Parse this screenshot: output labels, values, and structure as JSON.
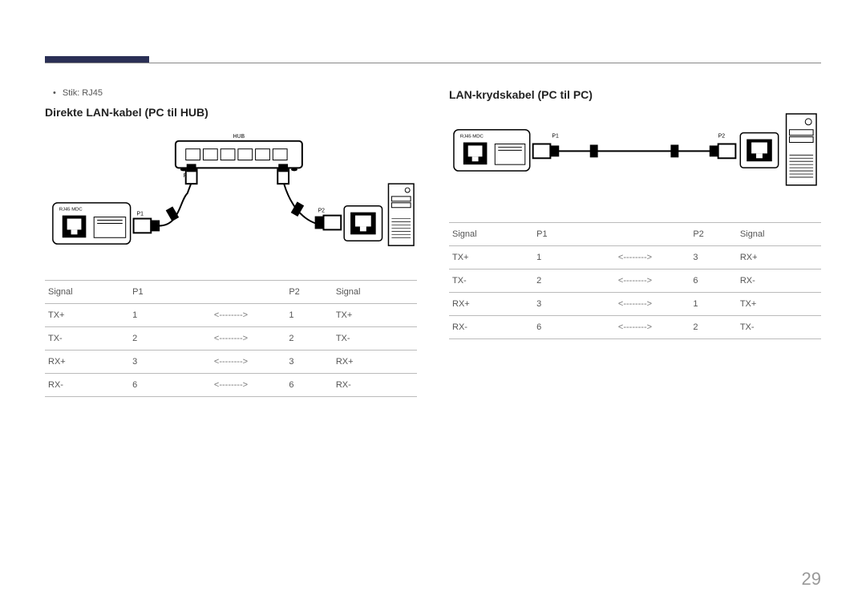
{
  "page_number": "29",
  "accent_color": "#2a2f55",
  "left": {
    "bullet": "Stik: RJ45",
    "heading": "Direkte LAN-kabel (PC til HUB)",
    "diagram": {
      "hub_label": "HUB",
      "hub_port_left": "P2",
      "hub_port_right": "P1",
      "mdc_label": "RJ45 MDC",
      "mdc_port": "P1",
      "right_port": "P2"
    },
    "table": {
      "headers": [
        "Signal",
        "P1",
        "",
        "P2",
        "Signal"
      ],
      "arrow": "<-------->",
      "rows": [
        [
          "TX+",
          "1",
          "1",
          "TX+"
        ],
        [
          "TX-",
          "2",
          "2",
          "TX-"
        ],
        [
          "RX+",
          "3",
          "3",
          "RX+"
        ],
        [
          "RX-",
          "6",
          "6",
          "RX-"
        ]
      ]
    }
  },
  "right": {
    "heading": "LAN-krydskabel (PC til PC)",
    "diagram": {
      "mdc_label": "RJ45 MDC",
      "port_left": "P1",
      "port_right": "P2"
    },
    "table": {
      "headers": [
        "Signal",
        "P1",
        "",
        "P2",
        "Signal"
      ],
      "arrow": "<-------->",
      "rows": [
        [
          "TX+",
          "1",
          "3",
          "RX+"
        ],
        [
          "TX-",
          "2",
          "6",
          "RX-"
        ],
        [
          "RX+",
          "3",
          "1",
          "TX+"
        ],
        [
          "RX-",
          "6",
          "2",
          "TX-"
        ]
      ]
    }
  }
}
